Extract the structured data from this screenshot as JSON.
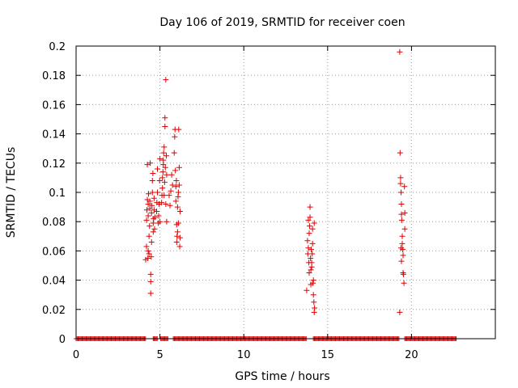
{
  "chart_data": {
    "type": "scatter",
    "title": "Day 106 of 2019, SRMTID for receiver coen",
    "xlabel": "GPS time / hours",
    "ylabel": "SRMTID / TECUs",
    "xlim": [
      0,
      25
    ],
    "ylim": [
      0,
      0.2
    ],
    "x_ticks": [
      0,
      5,
      10,
      15,
      20
    ],
    "x_tick_labels": [
      "0",
      "5",
      "10",
      "15",
      "20"
    ],
    "y_ticks": [
      0,
      0.02,
      0.04,
      0.06,
      0.08,
      0.1,
      0.12,
      0.14,
      0.16,
      0.18,
      0.2
    ],
    "y_tick_labels": [
      "0",
      "0.02",
      "0.04",
      "0.06",
      "0.08",
      "0.1",
      "0.12",
      "0.14",
      "0.16",
      "0.18",
      "0.2"
    ],
    "grid": true,
    "marker": "+",
    "color": "#e00000",
    "baseline_segments": [
      [
        0,
        4.15
      ],
      [
        4.6,
        4.85
      ],
      [
        5.05,
        5.5
      ],
      [
        5.8,
        13.75
      ],
      [
        14.15,
        19.3
      ],
      [
        19.6,
        22.7
      ]
    ],
    "series": [
      {
        "name": "SRMTID",
        "points": [
          [
            4.15,
            0.054
          ],
          [
            4.2,
            0.063
          ],
          [
            4.2,
            0.081
          ],
          [
            4.22,
            0.088
          ],
          [
            4.25,
            0.095
          ],
          [
            4.25,
            0.119
          ],
          [
            4.28,
            0.055
          ],
          [
            4.3,
            0.06
          ],
          [
            4.3,
            0.084
          ],
          [
            4.3,
            0.092
          ],
          [
            4.32,
            0.099
          ],
          [
            4.35,
            0.058
          ],
          [
            4.35,
            0.07
          ],
          [
            4.38,
            0.077
          ],
          [
            4.4,
            0.089
          ],
          [
            4.4,
            0.094
          ],
          [
            4.42,
            0.12
          ],
          [
            4.45,
            0.031
          ],
          [
            4.45,
            0.039
          ],
          [
            4.45,
            0.044
          ],
          [
            4.48,
            0.056
          ],
          [
            4.5,
            0.066
          ],
          [
            4.5,
            0.086
          ],
          [
            4.52,
            0.091
          ],
          [
            4.55,
            0.1
          ],
          [
            4.55,
            0.108
          ],
          [
            4.58,
            0.113
          ],
          [
            4.6,
            0.073
          ],
          [
            4.6,
            0.079
          ],
          [
            4.62,
            0.082
          ],
          [
            4.65,
            0.088
          ],
          [
            4.65,
            0.096
          ],
          [
            4.68,
            0.075
          ],
          [
            4.7,
            0.083
          ],
          [
            4.8,
            0.087
          ],
          [
            4.82,
            0.093
          ],
          [
            4.85,
            0.1
          ],
          [
            4.85,
            0.116
          ],
          [
            4.9,
            0.079
          ],
          [
            4.92,
            0.084
          ],
          [
            4.95,
            0.092
          ],
          [
            4.98,
            0.108
          ],
          [
            5.0,
            0.123
          ],
          [
            5.0,
            0.08
          ],
          [
            5.1,
            0.093
          ],
          [
            5.12,
            0.098
          ],
          [
            5.15,
            0.103
          ],
          [
            5.15,
            0.11
          ],
          [
            5.18,
            0.114
          ],
          [
            5.2,
            0.119
          ],
          [
            5.2,
            0.122
          ],
          [
            5.22,
            0.127
          ],
          [
            5.25,
            0.131
          ],
          [
            5.25,
            0.098
          ],
          [
            5.28,
            0.107
          ],
          [
            5.3,
            0.145
          ],
          [
            5.3,
            0.151
          ],
          [
            5.32,
            0.117
          ],
          [
            5.35,
            0.177
          ],
          [
            5.35,
            0.092
          ],
          [
            5.38,
            0.125
          ],
          [
            5.4,
            0.112
          ],
          [
            5.4,
            0.08
          ],
          [
            5.55,
            0.098
          ],
          [
            5.6,
            0.091
          ],
          [
            5.65,
            0.101
          ],
          [
            5.7,
            0.112
          ],
          [
            5.75,
            0.105
          ],
          [
            5.85,
            0.127
          ],
          [
            5.88,
            0.138
          ],
          [
            5.9,
            0.143
          ],
          [
            5.92,
            0.115
          ],
          [
            5.95,
            0.094
          ],
          [
            5.95,
            0.104
          ],
          [
            5.98,
            0.108
          ],
          [
            6.0,
            0.078
          ],
          [
            6.0,
            0.066
          ],
          [
            6.02,
            0.07
          ],
          [
            6.05,
            0.073
          ],
          [
            6.05,
            0.09
          ],
          [
            6.08,
            0.097
          ],
          [
            6.1,
            0.1
          ],
          [
            6.1,
            0.079
          ],
          [
            6.12,
            0.143
          ],
          [
            6.15,
            0.117
          ],
          [
            6.15,
            0.105
          ],
          [
            6.18,
            0.063
          ],
          [
            6.2,
            0.087
          ],
          [
            6.2,
            0.069
          ],
          [
            13.75,
            0.033
          ],
          [
            13.8,
            0.067
          ],
          [
            13.82,
            0.058
          ],
          [
            13.85,
            0.062
          ],
          [
            13.85,
            0.081
          ],
          [
            13.88,
            0.052
          ],
          [
            13.9,
            0.045
          ],
          [
            13.9,
            0.072
          ],
          [
            13.92,
            0.077
          ],
          [
            13.95,
            0.09
          ],
          [
            13.95,
            0.083
          ],
          [
            13.98,
            0.055
          ],
          [
            14.0,
            0.037
          ],
          [
            14.0,
            0.047
          ],
          [
            14.02,
            0.061
          ],
          [
            14.05,
            0.049
          ],
          [
            14.05,
            0.052
          ],
          [
            14.08,
            0.058
          ],
          [
            14.1,
            0.065
          ],
          [
            14.1,
            0.075
          ],
          [
            14.12,
            0.038
          ],
          [
            14.15,
            0.04
          ],
          [
            14.15,
            0.03
          ],
          [
            14.18,
            0.025
          ],
          [
            14.2,
            0.079
          ],
          [
            14.2,
            0.018
          ],
          [
            14.22,
            0.021
          ],
          [
            19.3,
            0.196
          ],
          [
            19.32,
            0.127
          ],
          [
            19.35,
            0.11
          ],
          [
            19.35,
            0.106
          ],
          [
            19.38,
            0.1
          ],
          [
            19.4,
            0.092
          ],
          [
            19.4,
            0.085
          ],
          [
            19.42,
            0.081
          ],
          [
            19.45,
            0.07
          ],
          [
            19.45,
            0.065
          ],
          [
            19.48,
            0.061
          ],
          [
            19.5,
            0.057
          ],
          [
            19.5,
            0.045
          ],
          [
            19.52,
            0.044
          ],
          [
            19.55,
            0.038
          ],
          [
            19.3,
            0.018
          ],
          [
            19.58,
            0.104
          ],
          [
            19.6,
            0.086
          ],
          [
            19.6,
            0.075
          ],
          [
            19.38,
            0.062
          ],
          [
            19.4,
            0.053
          ]
        ]
      }
    ]
  }
}
